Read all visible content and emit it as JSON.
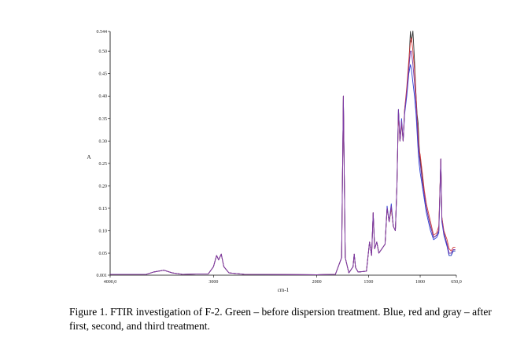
{
  "chart_data": {
    "type": "line",
    "title": "",
    "xlabel": "cm-1",
    "ylabel": "A",
    "xlim": [
      4000,
      650
    ],
    "ylim": [
      0.001,
      0.544
    ],
    "x_reversed": true,
    "grid": false,
    "x_ticks": [
      {
        "value": 4000,
        "label": "4000,0"
      },
      {
        "value": 3000,
        "label": "3000"
      },
      {
        "value": 2000,
        "label": "2000"
      },
      {
        "value": 1500,
        "label": "1500"
      },
      {
        "value": 1000,
        "label": "1000"
      },
      {
        "value": 650,
        "label": "650,0"
      }
    ],
    "y_ticks": [
      {
        "value": 0.544,
        "label": "0.544"
      },
      {
        "value": 0.5,
        "label": "0.50"
      },
      {
        "value": 0.45,
        "label": "0.45"
      },
      {
        "value": 0.4,
        "label": "0.40"
      },
      {
        "value": 0.35,
        "label": "0.35"
      },
      {
        "value": 0.3,
        "label": "0.30"
      },
      {
        "value": 0.25,
        "label": "0.25"
      },
      {
        "value": 0.2,
        "label": "0.20"
      },
      {
        "value": 0.15,
        "label": "0.15"
      },
      {
        "value": 0.1,
        "label": "0.10"
      },
      {
        "value": 0.05,
        "label": "0.05"
      },
      {
        "value": 0.001,
        "label": "0.001"
      }
    ],
    "series": [
      {
        "color": "#333333",
        "points": [
          [
            4000,
            0.003
          ],
          [
            3650,
            0.003
          ],
          [
            3580,
            0.008
          ],
          [
            3480,
            0.012
          ],
          [
            3400,
            0.006
          ],
          [
            3300,
            0.003
          ],
          [
            3050,
            0.004
          ],
          [
            3000,
            0.02
          ],
          [
            2970,
            0.045
          ],
          [
            2950,
            0.035
          ],
          [
            2925,
            0.048
          ],
          [
            2900,
            0.02
          ],
          [
            2850,
            0.006
          ],
          [
            2700,
            0.003
          ],
          [
            2000,
            0.002
          ],
          [
            1820,
            0.003
          ],
          [
            1760,
            0.04
          ],
          [
            1743,
            0.4
          ],
          [
            1725,
            0.04
          ],
          [
            1690,
            0.006
          ],
          [
            1650,
            0.02
          ],
          [
            1638,
            0.048
          ],
          [
            1625,
            0.018
          ],
          [
            1600,
            0.008
          ],
          [
            1520,
            0.01
          ],
          [
            1490,
            0.075
          ],
          [
            1470,
            0.045
          ],
          [
            1455,
            0.14
          ],
          [
            1440,
            0.06
          ],
          [
            1420,
            0.075
          ],
          [
            1400,
            0.05
          ],
          [
            1340,
            0.07
          ],
          [
            1320,
            0.15
          ],
          [
            1300,
            0.12
          ],
          [
            1280,
            0.15
          ],
          [
            1260,
            0.11
          ],
          [
            1240,
            0.1
          ],
          [
            1225,
            0.2
          ],
          [
            1210,
            0.37
          ],
          [
            1195,
            0.3
          ],
          [
            1180,
            0.34
          ],
          [
            1165,
            0.3
          ],
          [
            1150,
            0.37
          ],
          [
            1130,
            0.41
          ],
          [
            1110,
            0.47
          ],
          [
            1095,
            0.544
          ],
          [
            1085,
            0.52
          ],
          [
            1070,
            0.545
          ],
          [
            1055,
            0.48
          ],
          [
            1040,
            0.4
          ],
          [
            1030,
            0.36
          ],
          [
            1020,
            0.34
          ],
          [
            1010,
            0.29
          ],
          [
            1000,
            0.26
          ],
          [
            980,
            0.22
          ],
          [
            960,
            0.18
          ],
          [
            940,
            0.15
          ],
          [
            900,
            0.11
          ],
          [
            870,
            0.085
          ],
          [
            840,
            0.09
          ],
          [
            820,
            0.1
          ],
          [
            800,
            0.26
          ],
          [
            790,
            0.13
          ],
          [
            770,
            0.095
          ],
          [
            740,
            0.07
          ],
          [
            720,
            0.045
          ],
          [
            700,
            0.045
          ],
          [
            680,
            0.055
          ],
          [
            660,
            0.055
          ]
        ]
      },
      {
        "color": "#2a3fd6",
        "points": [
          [
            4000,
            0.003
          ],
          [
            3650,
            0.003
          ],
          [
            3580,
            0.008
          ],
          [
            3480,
            0.012
          ],
          [
            3400,
            0.006
          ],
          [
            3300,
            0.003
          ],
          [
            3050,
            0.004
          ],
          [
            3000,
            0.02
          ],
          [
            2970,
            0.045
          ],
          [
            2950,
            0.035
          ],
          [
            2925,
            0.048
          ],
          [
            2900,
            0.02
          ],
          [
            2850,
            0.006
          ],
          [
            2700,
            0.003
          ],
          [
            2000,
            0.002
          ],
          [
            1820,
            0.003
          ],
          [
            1760,
            0.04
          ],
          [
            1743,
            0.4
          ],
          [
            1725,
            0.04
          ],
          [
            1690,
            0.006
          ],
          [
            1650,
            0.02
          ],
          [
            1638,
            0.048
          ],
          [
            1625,
            0.018
          ],
          [
            1600,
            0.008
          ],
          [
            1520,
            0.01
          ],
          [
            1490,
            0.075
          ],
          [
            1470,
            0.045
          ],
          [
            1455,
            0.14
          ],
          [
            1440,
            0.06
          ],
          [
            1420,
            0.075
          ],
          [
            1400,
            0.05
          ],
          [
            1340,
            0.07
          ],
          [
            1320,
            0.155
          ],
          [
            1300,
            0.12
          ],
          [
            1280,
            0.16
          ],
          [
            1260,
            0.11
          ],
          [
            1240,
            0.1
          ],
          [
            1225,
            0.2
          ],
          [
            1210,
            0.37
          ],
          [
            1195,
            0.3
          ],
          [
            1180,
            0.35
          ],
          [
            1165,
            0.3
          ],
          [
            1150,
            0.36
          ],
          [
            1130,
            0.4
          ],
          [
            1110,
            0.45
          ],
          [
            1095,
            0.47
          ],
          [
            1085,
            0.46
          ],
          [
            1070,
            0.43
          ],
          [
            1055,
            0.4
          ],
          [
            1040,
            0.36
          ],
          [
            1030,
            0.32
          ],
          [
            1020,
            0.28
          ],
          [
            1010,
            0.25
          ],
          [
            1000,
            0.23
          ],
          [
            980,
            0.2
          ],
          [
            960,
            0.17
          ],
          [
            940,
            0.14
          ],
          [
            900,
            0.1
          ],
          [
            870,
            0.08
          ],
          [
            840,
            0.085
          ],
          [
            820,
            0.095
          ],
          [
            800,
            0.26
          ],
          [
            790,
            0.12
          ],
          [
            770,
            0.09
          ],
          [
            740,
            0.065
          ],
          [
            720,
            0.045
          ],
          [
            700,
            0.045
          ],
          [
            680,
            0.055
          ],
          [
            660,
            0.055
          ]
        ]
      },
      {
        "color": "#d43a3a",
        "points": [
          [
            4000,
            0.003
          ],
          [
            3650,
            0.003
          ],
          [
            3580,
            0.008
          ],
          [
            3480,
            0.012
          ],
          [
            3400,
            0.006
          ],
          [
            3300,
            0.003
          ],
          [
            3050,
            0.004
          ],
          [
            3000,
            0.02
          ],
          [
            2970,
            0.045
          ],
          [
            2950,
            0.035
          ],
          [
            2925,
            0.048
          ],
          [
            2900,
            0.02
          ],
          [
            2850,
            0.006
          ],
          [
            2700,
            0.003
          ],
          [
            2000,
            0.002
          ],
          [
            1820,
            0.003
          ],
          [
            1760,
            0.04
          ],
          [
            1743,
            0.4
          ],
          [
            1725,
            0.04
          ],
          [
            1690,
            0.006
          ],
          [
            1650,
            0.02
          ],
          [
            1638,
            0.048
          ],
          [
            1625,
            0.018
          ],
          [
            1600,
            0.008
          ],
          [
            1520,
            0.01
          ],
          [
            1490,
            0.075
          ],
          [
            1470,
            0.045
          ],
          [
            1455,
            0.14
          ],
          [
            1440,
            0.06
          ],
          [
            1420,
            0.075
          ],
          [
            1400,
            0.05
          ],
          [
            1340,
            0.07
          ],
          [
            1320,
            0.15
          ],
          [
            1300,
            0.12
          ],
          [
            1280,
            0.15
          ],
          [
            1260,
            0.11
          ],
          [
            1240,
            0.1
          ],
          [
            1225,
            0.2
          ],
          [
            1210,
            0.36
          ],
          [
            1195,
            0.3
          ],
          [
            1180,
            0.34
          ],
          [
            1165,
            0.3
          ],
          [
            1150,
            0.37
          ],
          [
            1130,
            0.42
          ],
          [
            1110,
            0.48
          ],
          [
            1095,
            0.52
          ],
          [
            1085,
            0.53
          ],
          [
            1070,
            0.5
          ],
          [
            1055,
            0.46
          ],
          [
            1040,
            0.4
          ],
          [
            1030,
            0.35
          ],
          [
            1020,
            0.32
          ],
          [
            1010,
            0.28
          ],
          [
            1000,
            0.27
          ],
          [
            980,
            0.23
          ],
          [
            960,
            0.19
          ],
          [
            940,
            0.16
          ],
          [
            900,
            0.12
          ],
          [
            870,
            0.09
          ],
          [
            840,
            0.095
          ],
          [
            820,
            0.11
          ],
          [
            800,
            0.26
          ],
          [
            790,
            0.13
          ],
          [
            770,
            0.1
          ],
          [
            740,
            0.08
          ],
          [
            720,
            0.06
          ],
          [
            700,
            0.055
          ],
          [
            680,
            0.063
          ],
          [
            660,
            0.063
          ]
        ]
      },
      {
        "color": "#7a3aa8",
        "points": [
          [
            4000,
            0.003
          ],
          [
            3650,
            0.003
          ],
          [
            3580,
            0.008
          ],
          [
            3480,
            0.012
          ],
          [
            3400,
            0.006
          ],
          [
            3300,
            0.003
          ],
          [
            3050,
            0.004
          ],
          [
            3000,
            0.02
          ],
          [
            2970,
            0.045
          ],
          [
            2950,
            0.035
          ],
          [
            2925,
            0.048
          ],
          [
            2900,
            0.02
          ],
          [
            2850,
            0.006
          ],
          [
            2700,
            0.003
          ],
          [
            2000,
            0.002
          ],
          [
            1820,
            0.003
          ],
          [
            1760,
            0.04
          ],
          [
            1743,
            0.4
          ],
          [
            1725,
            0.04
          ],
          [
            1690,
            0.006
          ],
          [
            1650,
            0.02
          ],
          [
            1638,
            0.048
          ],
          [
            1625,
            0.018
          ],
          [
            1600,
            0.008
          ],
          [
            1520,
            0.01
          ],
          [
            1490,
            0.075
          ],
          [
            1470,
            0.045
          ],
          [
            1455,
            0.14
          ],
          [
            1440,
            0.06
          ],
          [
            1420,
            0.075
          ],
          [
            1400,
            0.05
          ],
          [
            1340,
            0.07
          ],
          [
            1320,
            0.15
          ],
          [
            1300,
            0.12
          ],
          [
            1280,
            0.155
          ],
          [
            1260,
            0.11
          ],
          [
            1240,
            0.1
          ],
          [
            1225,
            0.2
          ],
          [
            1210,
            0.37
          ],
          [
            1195,
            0.3
          ],
          [
            1180,
            0.345
          ],
          [
            1165,
            0.3
          ],
          [
            1150,
            0.365
          ],
          [
            1130,
            0.41
          ],
          [
            1110,
            0.46
          ],
          [
            1095,
            0.5
          ],
          [
            1085,
            0.5
          ],
          [
            1070,
            0.47
          ],
          [
            1055,
            0.43
          ],
          [
            1040,
            0.38
          ],
          [
            1030,
            0.34
          ],
          [
            1020,
            0.3
          ],
          [
            1010,
            0.27
          ],
          [
            1000,
            0.25
          ],
          [
            980,
            0.21
          ],
          [
            960,
            0.18
          ],
          [
            940,
            0.15
          ],
          [
            900,
            0.11
          ],
          [
            870,
            0.085
          ],
          [
            840,
            0.09
          ],
          [
            820,
            0.1
          ],
          [
            800,
            0.26
          ],
          [
            790,
            0.125
          ],
          [
            770,
            0.095
          ],
          [
            740,
            0.07
          ],
          [
            720,
            0.05
          ],
          [
            700,
            0.05
          ],
          [
            680,
            0.058
          ],
          [
            660,
            0.058
          ]
        ]
      }
    ]
  },
  "caption": "Figure 1. FTIR investigation of F-2. Green – before dispersion treatment. Blue, red and gray – after first, second, and third treatment."
}
